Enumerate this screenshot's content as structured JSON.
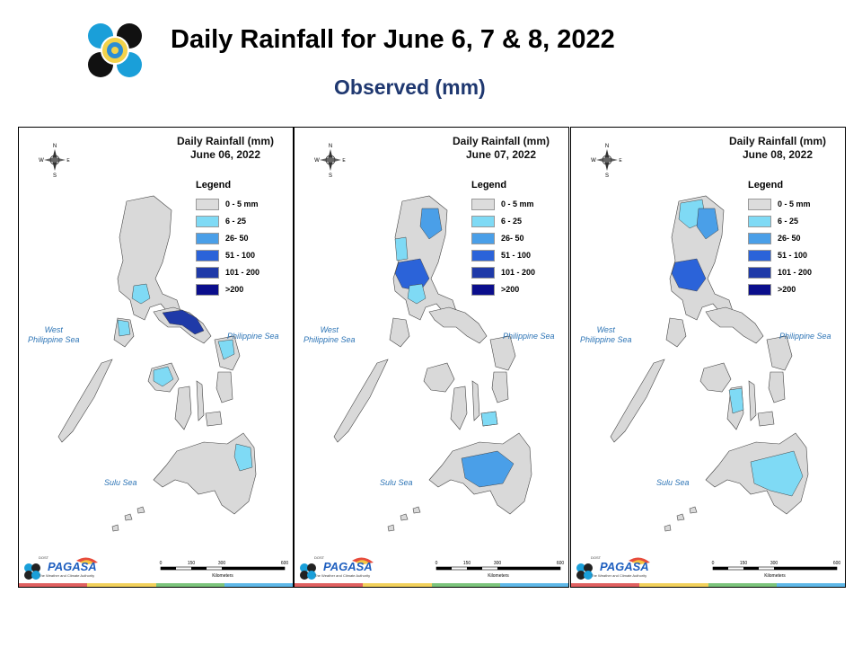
{
  "title": "Daily Rainfall for June 6, 7 & 8, 2022",
  "subtitle": "Observed (mm)",
  "legend_title": "Legend",
  "legend": [
    {
      "label": "0 - 5 mm",
      "color": "#dcdcdc"
    },
    {
      "label": "6 - 25",
      "color": "#7fdaf5"
    },
    {
      "label": "26- 50",
      "color": "#4a9fe8"
    },
    {
      "label": "51 - 100",
      "color": "#2b63d9"
    },
    {
      "label": "101 - 200",
      "color": "#1f3aa8"
    },
    {
      "label": ">200",
      "color": "#0b0e8c"
    }
  ],
  "seas": {
    "west": "West\nPhilippine Sea",
    "east": "Philippine Sea",
    "sulu": "Sulu Sea"
  },
  "compass": {
    "n": "N",
    "s": "S",
    "e": "E",
    "w": "W"
  },
  "scale": {
    "ticks": [
      "0",
      "150",
      "300",
      "600"
    ],
    "unit": "Kilometers"
  },
  "branding": {
    "name": "PAGASA",
    "agency": "DOST",
    "tagline": "The Weather and Climate Authority"
  },
  "colors": {
    "land": "#d9d9d9",
    "band": [
      "#e06060",
      "#f2d15c",
      "#7cc47c",
      "#5fb8e8"
    ]
  },
  "panels": [
    {
      "heading": "Daily Rainfall (mm)",
      "date": "June 06, 2022",
      "rain": [
        {
          "region": "Bicol peninsula",
          "level": 4
        },
        {
          "region": "Southern Tagalog",
          "level": 1
        },
        {
          "region": "Mindoro",
          "level": 1
        },
        {
          "region": "Panay",
          "level": 1
        },
        {
          "region": "Samar",
          "level": 1
        },
        {
          "region": "Eastern Mindanao",
          "level": 1
        }
      ]
    },
    {
      "heading": "Daily Rainfall (mm)",
      "date": "June 07, 2022",
      "rain": [
        {
          "region": "Cagayan Valley",
          "level": 2
        },
        {
          "region": "Central Luzon",
          "level": 3
        },
        {
          "region": "Ilocos",
          "level": 1
        },
        {
          "region": "Bohol",
          "level": 1
        },
        {
          "region": "Northern Mindanao",
          "level": 2
        },
        {
          "region": "Southern Tagalog",
          "level": 1
        }
      ]
    },
    {
      "heading": "Daily Rainfall (mm)",
      "date": "June 08, 2022",
      "rain": [
        {
          "region": "Northern Luzon",
          "level": 1
        },
        {
          "region": "Cagayan Valley",
          "level": 2
        },
        {
          "region": "Central Luzon",
          "level": 3
        },
        {
          "region": "Visayas",
          "level": 1
        },
        {
          "region": "Mindanao",
          "level": 1
        }
      ]
    }
  ]
}
